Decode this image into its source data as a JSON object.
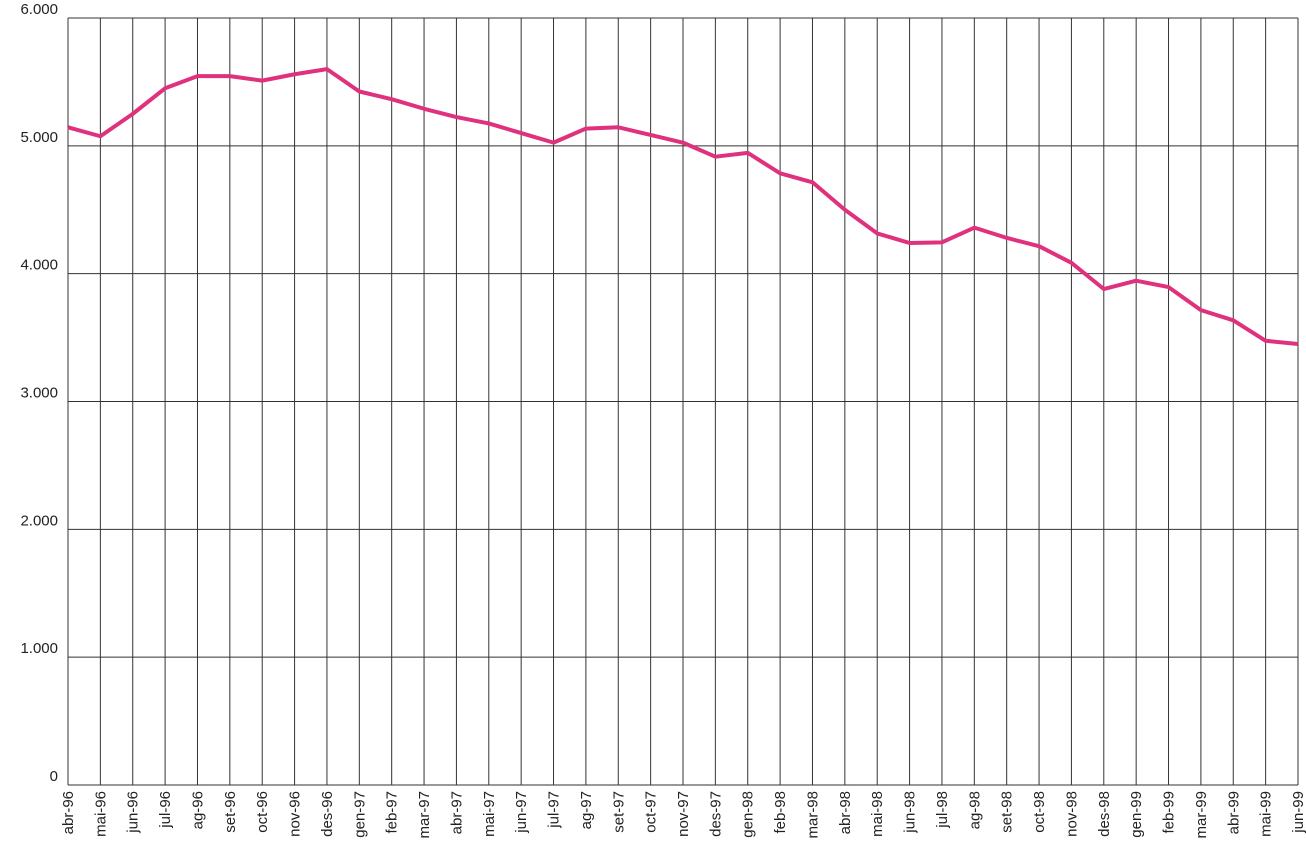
{
  "chart_data": {
    "type": "line",
    "categories": [
      "abr-96",
      "mai-96",
      "jun-96",
      "jul-96",
      "ag-96",
      "set-96",
      "oct-96",
      "nov-96",
      "des-96",
      "gen-97",
      "feb-97",
      "mar-97",
      "abr-97",
      "mai-97",
      "jun-97",
      "jul-97",
      "ag-97",
      "set-97",
      "oct-97",
      "nov-97",
      "des-97",
      "gen-98",
      "feb-98",
      "mar-98",
      "abr-98",
      "mai-98",
      "jun-98",
      "jul-98",
      "ag-98",
      "set-98",
      "oct-98",
      "nov-98",
      "des-98",
      "gen-99",
      "feb-99",
      "mar-99",
      "abr-99",
      "mai-99",
      "jun-99"
    ],
    "values": [
      5145,
      5075,
      5250,
      5450,
      5545,
      5545,
      5510,
      5560,
      5600,
      5425,
      5365,
      5290,
      5225,
      5175,
      5100,
      5025,
      5135,
      5145,
      5085,
      5025,
      4915,
      4945,
      4785,
      4715,
      4500,
      4315,
      4240,
      4245,
      4360,
      4280,
      4215,
      4085,
      3880,
      3945,
      3895,
      3715,
      3635,
      3475,
      3450
    ],
    "color": "#e0317e",
    "ylim": [
      0,
      6000
    ],
    "yticks": [
      0,
      {
        "value": 1000,
        "label": "1.000"
      },
      {
        "value": 2000,
        "label": "2.000"
      },
      {
        "value": 3000,
        "label": "3.000"
      },
      {
        "value": 4000,
        "label": "4.000"
      },
      {
        "value": 5000,
        "label": "5.000"
      },
      {
        "value": 6000,
        "label": "6.000"
      }
    ],
    "grid": true
  }
}
